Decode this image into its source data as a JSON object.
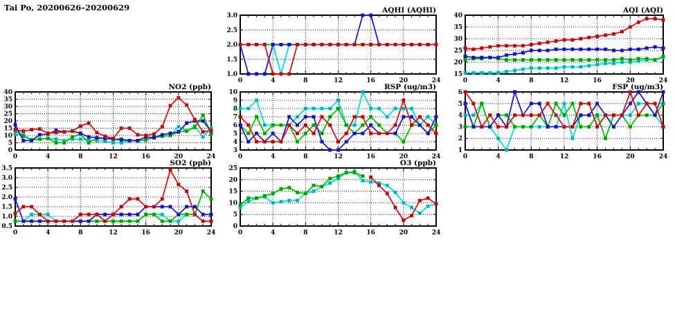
{
  "title": "Tai Po, 20200626–20200629",
  "colors": {
    "red": "#e01010",
    "blue": "#1c1cd8",
    "green": "#00c400",
    "cyan": "#00dede"
  },
  "axis": {
    "x_ticks": [
      0,
      4,
      8,
      12,
      16,
      20,
      24
    ],
    "x_range": [
      0,
      24
    ],
    "x_minor_step": 1,
    "x_start": 0,
    "x_step": 1
  },
  "chart_data": [
    {
      "id": "aqhi",
      "type": "line",
      "title": "AQHI (AQHI)",
      "ylim": [
        1,
        3
      ],
      "yticks": [
        1,
        1.5,
        2,
        2.5,
        3
      ],
      "ydecimals": 1,
      "series": [
        {
          "name": "red",
          "values": [
            2,
            2,
            2,
            2,
            1,
            1,
            1,
            2,
            2,
            2,
            2,
            2,
            2,
            2,
            2,
            2,
            2,
            2,
            2,
            2,
            2,
            2,
            2,
            2,
            2
          ]
        },
        {
          "name": "blue",
          "values": [
            2,
            1,
            1,
            1,
            2,
            2,
            2,
            2,
            2,
            2,
            2,
            2,
            2,
            2,
            2,
            3,
            3,
            2,
            2,
            2,
            2,
            2,
            2,
            2,
            2
          ]
        },
        {
          "name": "green",
          "values": [
            2,
            2,
            2,
            2,
            2,
            2,
            2,
            2,
            2,
            2,
            2,
            2,
            2,
            2,
            2,
            2,
            2,
            2,
            2,
            2,
            2,
            2,
            2,
            2,
            2
          ]
        },
        {
          "name": "cyan",
          "values": [
            2,
            2,
            2,
            2,
            2,
            1,
            2,
            2,
            2,
            2,
            2,
            2,
            2,
            2,
            2,
            2,
            2,
            2,
            2,
            2,
            2,
            2,
            2,
            2,
            2
          ]
        }
      ]
    },
    {
      "id": "aqi",
      "type": "line",
      "title": "AQI (AQI)",
      "ylim": [
        15,
        40
      ],
      "yticks": [
        15,
        20,
        25,
        30,
        35,
        40
      ],
      "ydecimals": 0,
      "series": [
        {
          "name": "red",
          "values": [
            26,
            25.5,
            26,
            26.5,
            27,
            27,
            27,
            27,
            27.5,
            28,
            28.5,
            29,
            29.5,
            29.5,
            30,
            30.5,
            31,
            31.5,
            32,
            33,
            35,
            37,
            38.5,
            38.5,
            38
          ]
        },
        {
          "name": "blue",
          "values": [
            22.5,
            22,
            22,
            22,
            22,
            23,
            23.5,
            24,
            25,
            25,
            25,
            25.5,
            25.5,
            25.5,
            25.5,
            25.5,
            25.5,
            25.5,
            25,
            25,
            25.5,
            25.5,
            26,
            26.5,
            26
          ]
        },
        {
          "name": "green",
          "values": [
            21,
            21.5,
            21.5,
            22,
            21.5,
            21,
            21,
            21,
            21,
            21,
            21,
            21,
            21,
            21,
            21,
            21,
            21,
            21,
            21,
            21.5,
            21,
            21.5,
            21.5,
            21,
            22.5
          ]
        },
        {
          "name": "cyan",
          "values": [
            15.5,
            15.5,
            15.5,
            15.5,
            15.5,
            16,
            16.5,
            17,
            17.5,
            17.5,
            17.5,
            17.5,
            18,
            18,
            18,
            18.5,
            19,
            19.5,
            19.5,
            20,
            20,
            20.5,
            21,
            21,
            22
          ]
        }
      ]
    },
    {
      "id": "no2",
      "type": "line",
      "title": "NO2 (ppb)",
      "ylim": [
        0,
        40
      ],
      "yticks": [
        0,
        5,
        10,
        15,
        20,
        25,
        30,
        35,
        40
      ],
      "ydecimals": 0,
      "series": [
        {
          "name": "red",
          "values": [
            14,
            13,
            14,
            14.5,
            11.5,
            12,
            12.5,
            13,
            16.5,
            18.5,
            12,
            9.5,
            8,
            15,
            15,
            10.5,
            10,
            11,
            16,
            30.5,
            36,
            31,
            21,
            12.5,
            13.5
          ]
        },
        {
          "name": "blue",
          "values": [
            17.5,
            6.5,
            6.5,
            10.5,
            11,
            13.5,
            12.5,
            13,
            11.5,
            9,
            8.5,
            8,
            7.5,
            7,
            6.5,
            6.5,
            9,
            8.5,
            10.5,
            11.5,
            12.5,
            18.5,
            20,
            20,
            13
          ]
        },
        {
          "name": "green",
          "values": [
            13.5,
            9.5,
            7,
            7.5,
            8,
            5,
            5,
            9,
            11,
            5,
            8,
            8,
            7.5,
            7.5,
            6.5,
            6.5,
            7,
            9,
            9.5,
            10,
            12.5,
            13,
            15.5,
            24,
            11
          ]
        },
        {
          "name": "cyan",
          "values": [
            11,
            10.5,
            7,
            7.5,
            8,
            7.5,
            6.5,
            7.5,
            7.5,
            7,
            6.5,
            6,
            5,
            5,
            6.5,
            6,
            7,
            8.5,
            9.5,
            10,
            16,
            13,
            16.5,
            9,
            15
          ]
        }
      ]
    },
    {
      "id": "rsp",
      "type": "line",
      "title": "RSP (ug/m3)",
      "ylim": [
        3,
        10
      ],
      "yticks": [
        3,
        4,
        5,
        6,
        7,
        8,
        9,
        10
      ],
      "ydecimals": 0,
      "series": [
        {
          "name": "red",
          "values": [
            7,
            6,
            4,
            4,
            4,
            4,
            6,
            5,
            6,
            5,
            7,
            6,
            4,
            5,
            7,
            7,
            5,
            5,
            5,
            6,
            9,
            6,
            7,
            6,
            5
          ]
        },
        {
          "name": "blue",
          "values": [
            6,
            4,
            5,
            4,
            5,
            4,
            7,
            6,
            7,
            7,
            4,
            3,
            3,
            4,
            5,
            5,
            6,
            5,
            5,
            5,
            7,
            7,
            6,
            5,
            7
          ]
        },
        {
          "name": "green",
          "values": [
            6,
            5,
            7,
            5,
            6,
            6,
            6,
            4,
            5,
            6,
            5,
            7,
            8,
            6,
            5,
            6,
            7,
            6,
            5,
            5,
            4,
            6,
            6,
            5,
            6
          ]
        },
        {
          "name": "cyan",
          "values": [
            8,
            8,
            9,
            6,
            6,
            6,
            6,
            7,
            8,
            8,
            8,
            8,
            9,
            6,
            6,
            10,
            8,
            8,
            7,
            8,
            8,
            8,
            6,
            7,
            6
          ]
        }
      ]
    },
    {
      "id": "fsp",
      "type": "line",
      "title": "FSP (ug/m3)",
      "ylim": [
        1,
        6
      ],
      "yticks": [
        1,
        2,
        3,
        4,
        5,
        6
      ],
      "ydecimals": 0,
      "series": [
        {
          "name": "red",
          "values": [
            6,
            5,
            3,
            4,
            3,
            3,
            4,
            4,
            4,
            4,
            5,
            4,
            3,
            3,
            5,
            5,
            3,
            4,
            4,
            4,
            6,
            4,
            5,
            5,
            3
          ]
        },
        {
          "name": "blue",
          "values": [
            5,
            3,
            3,
            3,
            4,
            3,
            6,
            4,
            5,
            5,
            3,
            3,
            3,
            3,
            4,
            4,
            5,
            4,
            3,
            4,
            5,
            6,
            5,
            4,
            6
          ]
        },
        {
          "name": "green",
          "values": [
            3,
            3,
            5,
            3,
            4,
            4,
            3,
            3,
            3,
            4,
            3,
            5,
            4,
            5,
            3,
            3,
            4,
            2,
            4,
            4,
            3,
            4,
            4,
            4,
            5
          ]
        },
        {
          "name": "cyan",
          "values": [
            4,
            4,
            5,
            3,
            2,
            1,
            3,
            3,
            3,
            3,
            3,
            3,
            5,
            2,
            4,
            4,
            4,
            4,
            3,
            4,
            4,
            5,
            5,
            4,
            3
          ]
        }
      ]
    },
    {
      "id": "so2",
      "type": "line",
      "title": "SO2 (ppb)",
      "ylim": [
        0.5,
        3.5
      ],
      "yticks": [
        0.5,
        1,
        1.5,
        2,
        2.5,
        3,
        3.5
      ],
      "ydecimals": 1,
      "series": [
        {
          "name": "red",
          "values": [
            1.15,
            1.5,
            1.5,
            1.1,
            0.75,
            0.75,
            0.75,
            0.75,
            1.1,
            1.1,
            1.1,
            0.75,
            1.1,
            1.5,
            1.9,
            1.9,
            1.5,
            1.5,
            1.9,
            3.4,
            2.65,
            2.3,
            1.1,
            0.75,
            0.75
          ]
        },
        {
          "name": "blue",
          "values": [
            1.9,
            0.75,
            0.75,
            0.75,
            0.75,
            0.75,
            0.75,
            0.75,
            0.75,
            0.75,
            1.1,
            1.1,
            1.1,
            1.1,
            1.1,
            1.1,
            1.5,
            1.5,
            1.5,
            1.5,
            1.1,
            1.5,
            1.5,
            1.1,
            1.1
          ]
        },
        {
          "name": "green",
          "values": [
            0.75,
            0.75,
            0.75,
            0.75,
            0.75,
            0.75,
            0.75,
            0.75,
            0.75,
            0.75,
            0.75,
            0.75,
            0.75,
            0.75,
            0.75,
            0.75,
            1.1,
            1.1,
            0.75,
            0.75,
            1.1,
            1.1,
            1.1,
            2.3,
            1.9
          ]
        },
        {
          "name": "cyan",
          "values": [
            0.75,
            0.75,
            1.1,
            1.1,
            1.1,
            0.75,
            0.75,
            0.75,
            0.75,
            0.75,
            0.75,
            0.75,
            0.75,
            0.75,
            0.75,
            0.75,
            1.1,
            1.1,
            1.1,
            0.75,
            0.75,
            1.1,
            1.1,
            0.75,
            0.75
          ]
        }
      ]
    },
    {
      "id": "o3",
      "type": "line",
      "title": "O3 (ppb)",
      "ylim": [
        0,
        25
      ],
      "yticks": [
        0,
        5,
        10,
        15,
        20,
        25
      ],
      "ydecimals": 0,
      "series": [
        {
          "name": "red",
          "values": [
            null,
            null,
            null,
            null,
            null,
            null,
            null,
            null,
            null,
            null,
            null,
            null,
            null,
            null,
            null,
            null,
            21,
            17.5,
            14,
            8,
            2.5,
            4.5,
            11,
            12,
            9.5
          ]
        },
        {
          "name": "green",
          "values": [
            9,
            12,
            12,
            13,
            14,
            16,
            16.5,
            14.5,
            14,
            17.5,
            17,
            20.5,
            21.5,
            23,
            23,
            21.5,
            null,
            null,
            null,
            null,
            null,
            null,
            null,
            null,
            null
          ]
        },
        {
          "name": "cyan",
          "values": [
            8,
            10.5,
            12,
            12.5,
            10,
            10.5,
            11,
            11,
            14,
            15,
            17,
            18.5,
            20.5,
            23,
            23.5,
            19.5,
            19,
            18.5,
            17.5,
            14.5,
            10,
            8,
            5.5,
            8.5,
            9.5
          ]
        }
      ]
    }
  ]
}
